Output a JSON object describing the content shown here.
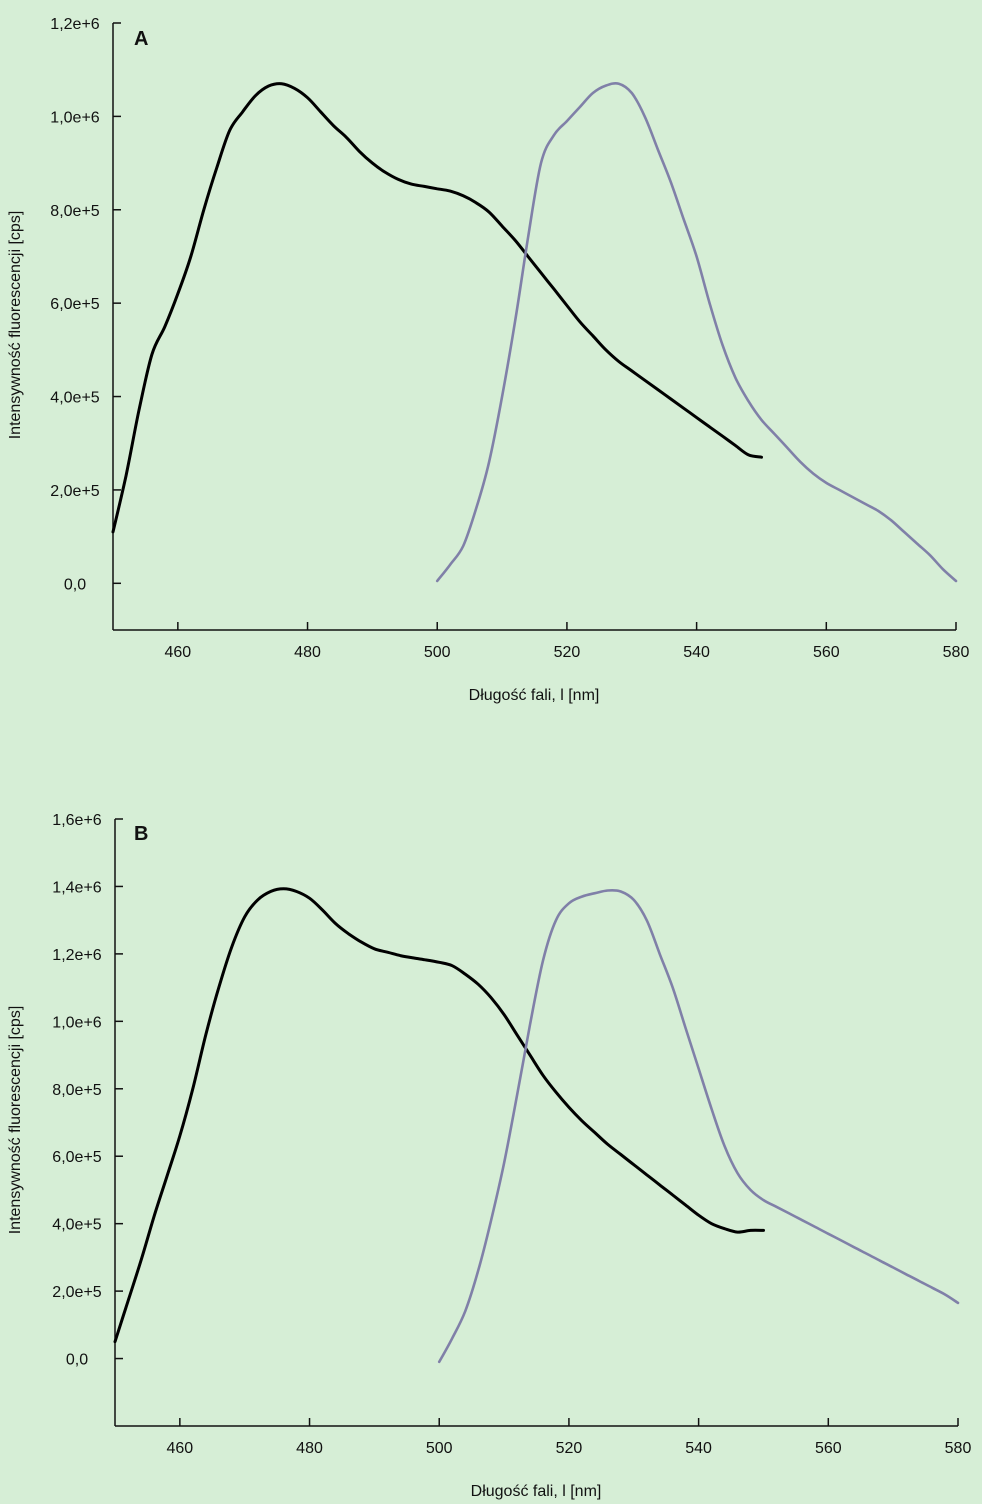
{
  "figure": {
    "background": "#d6eed6"
  },
  "chart_data": [
    {
      "type": "line",
      "panel_label": "A",
      "xlabel": "Długość fali, l [nm]",
      "ylabel": "Intensywność fluorescencji [cps]",
      "xlim": [
        450,
        580
      ],
      "ylim": [
        -100000,
        1200000
      ],
      "x_ticks": [
        460,
        480,
        500,
        520,
        540,
        560,
        580
      ],
      "x_tick_labels": [
        "460",
        "480",
        "500",
        "520",
        "540",
        "560",
        "580"
      ],
      "y_ticks": [
        0,
        200000,
        400000,
        600000,
        800000,
        1000000,
        1200000
      ],
      "y_tick_labels": [
        "0,0",
        "2,0e+5",
        "4,0e+5",
        "6,0e+5",
        "8,0e+5",
        "1,0e+6",
        "1,2e+6"
      ],
      "grid": false,
      "series": [
        {
          "color": "#000000",
          "x": [
            450,
            452,
            454,
            456,
            458,
            460,
            462,
            464,
            466,
            468,
            470,
            472,
            474,
            476,
            478,
            480,
            482,
            484,
            486,
            488,
            490,
            492,
            494,
            496,
            498,
            500,
            502,
            504,
            506,
            508,
            510,
            512,
            514,
            516,
            518,
            520,
            522,
            524,
            526,
            528,
            530,
            532,
            534,
            536,
            538,
            540,
            542,
            544,
            546,
            548,
            550
          ],
          "values": [
            110000,
            230000,
            370000,
            490000,
            550000,
            620000,
            700000,
            800000,
            890000,
            970000,
            1010000,
            1045000,
            1065000,
            1070000,
            1060000,
            1040000,
            1010000,
            980000,
            955000,
            925000,
            900000,
            880000,
            865000,
            855000,
            850000,
            845000,
            840000,
            830000,
            815000,
            795000,
            765000,
            735000,
            700000,
            665000,
            630000,
            595000,
            560000,
            530000,
            500000,
            475000,
            455000,
            435000,
            415000,
            395000,
            375000,
            355000,
            335000,
            315000,
            295000,
            275000,
            270000
          ]
        },
        {
          "color": "#8080a8",
          "x": [
            500,
            502,
            504,
            506,
            508,
            510,
            512,
            514,
            516,
            518,
            520,
            522,
            524,
            526,
            528,
            530,
            532,
            534,
            536,
            538,
            540,
            542,
            544,
            546,
            548,
            550,
            552,
            554,
            556,
            558,
            560,
            562,
            564,
            566,
            568,
            570,
            572,
            574,
            576,
            578,
            580
          ],
          "values": [
            5000,
            40000,
            80000,
            160000,
            260000,
            400000,
            560000,
            740000,
            900000,
            960000,
            990000,
            1020000,
            1050000,
            1066000,
            1070000,
            1050000,
            1000000,
            930000,
            860000,
            780000,
            700000,
            600000,
            510000,
            440000,
            390000,
            350000,
            320000,
            290000,
            260000,
            235000,
            215000,
            200000,
            185000,
            170000,
            155000,
            135000,
            110000,
            85000,
            60000,
            30000,
            5000
          ]
        }
      ]
    },
    {
      "type": "line",
      "panel_label": "B",
      "xlabel": "Długość fali, l [nm]",
      "ylabel": "Intensywność fluorescencji [cps]",
      "xlim": [
        450,
        580
      ],
      "ylim": [
        -200000,
        1600000
      ],
      "x_ticks": [
        460,
        480,
        500,
        520,
        540,
        560,
        580
      ],
      "x_tick_labels": [
        "460",
        "480",
        "500",
        "520",
        "540",
        "560",
        "580"
      ],
      "y_ticks": [
        0,
        200000,
        400000,
        600000,
        800000,
        1000000,
        1200000,
        1400000,
        1600000
      ],
      "y_tick_labels": [
        "0,0",
        "2,0e+5",
        "4,0e+5",
        "6,0e+5",
        "8,0e+5",
        "1,0e+6",
        "1,2e+6",
        "1,4e+6",
        "1,6e+6"
      ],
      "grid": false,
      "series": [
        {
          "color": "#000000",
          "x": [
            450,
            452,
            454,
            456,
            458,
            460,
            462,
            464,
            466,
            468,
            470,
            472,
            474,
            476,
            478,
            480,
            482,
            484,
            486,
            488,
            490,
            492,
            494,
            496,
            498,
            500,
            502,
            504,
            506,
            508,
            510,
            512,
            514,
            516,
            518,
            520,
            522,
            524,
            526,
            528,
            530,
            532,
            534,
            536,
            538,
            540,
            542,
            544,
            546,
            548,
            550
          ],
          "values": [
            50000,
            170000,
            290000,
            420000,
            540000,
            660000,
            800000,
            960000,
            1100000,
            1220000,
            1310000,
            1360000,
            1385000,
            1393000,
            1385000,
            1365000,
            1330000,
            1290000,
            1260000,
            1235000,
            1215000,
            1205000,
            1195000,
            1188000,
            1182000,
            1175000,
            1165000,
            1140000,
            1110000,
            1070000,
            1020000,
            960000,
            900000,
            840000,
            790000,
            745000,
            705000,
            670000,
            635000,
            605000,
            575000,
            545000,
            515000,
            485000,
            455000,
            425000,
            400000,
            385000,
            375000,
            380000,
            380000
          ]
        },
        {
          "color": "#8080a8",
          "x": [
            500,
            502,
            504,
            506,
            508,
            510,
            512,
            514,
            516,
            518,
            520,
            522,
            524,
            526,
            528,
            530,
            532,
            534,
            536,
            538,
            540,
            542,
            544,
            546,
            548,
            550,
            552,
            554,
            556,
            558,
            560,
            562,
            564,
            566,
            568,
            570,
            572,
            574,
            576,
            578,
            580
          ],
          "values": [
            -10000,
            60000,
            140000,
            260000,
            410000,
            580000,
            780000,
            990000,
            1180000,
            1300000,
            1350000,
            1370000,
            1380000,
            1388000,
            1385000,
            1360000,
            1300000,
            1200000,
            1100000,
            980000,
            860000,
            740000,
            630000,
            550000,
            500000,
            470000,
            450000,
            430000,
            410000,
            390000,
            370000,
            350000,
            330000,
            310000,
            290000,
            270000,
            250000,
            230000,
            210000,
            190000,
            165000
          ]
        }
      ]
    }
  ]
}
